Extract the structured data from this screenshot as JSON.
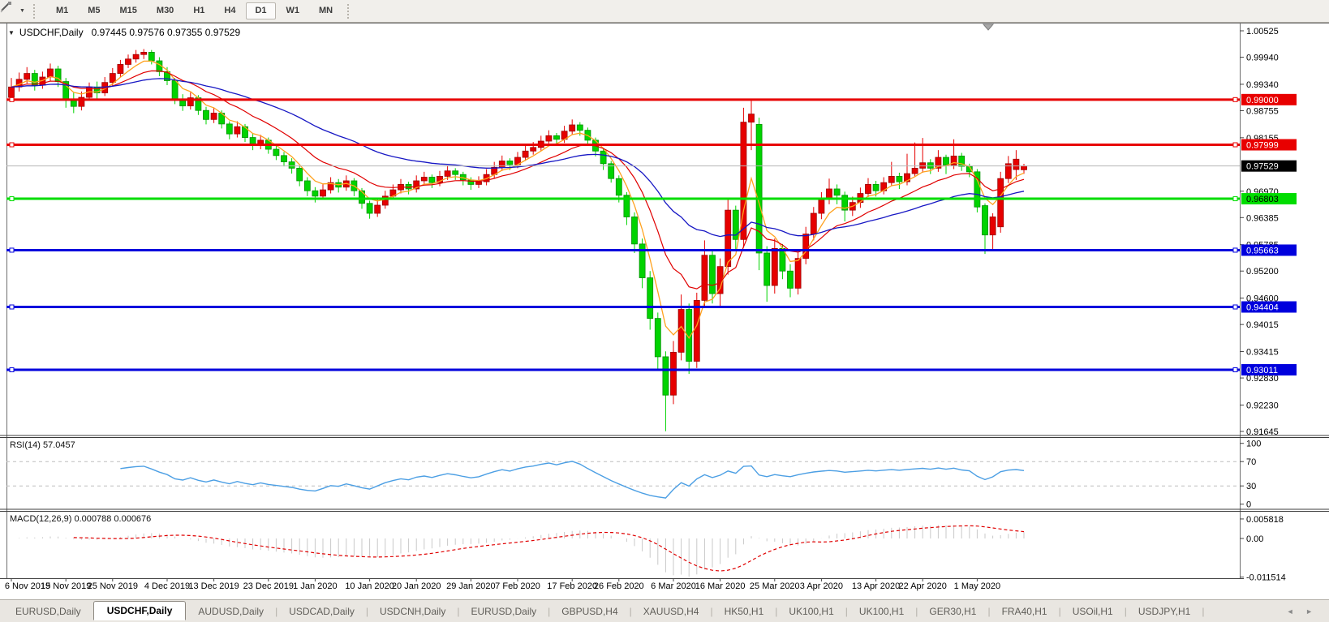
{
  "toolbar": {
    "timeframes": [
      "M1",
      "M5",
      "M15",
      "M30",
      "H1",
      "H4",
      "D1",
      "W1",
      "MN"
    ],
    "active_timeframe": "D1"
  },
  "icons": {
    "dropdown_caret": "▼",
    "tab_left_arrow": "◄",
    "tab_right_arrow": "►"
  },
  "chart": {
    "title_symbol": "USDCHF,Daily",
    "title_ohlc": "0.97445 0.97576 0.97355 0.97529",
    "price_axis_labels": [
      "1.00525",
      "0.99940",
      "0.99340",
      "0.98755",
      "0.98155",
      "0.96970",
      "0.96385",
      "0.95785",
      "0.95200",
      "0.94600",
      "0.94015",
      "0.93415",
      "0.92830",
      "0.92230",
      "0.91645"
    ],
    "hlines": [
      {
        "price": 0.99,
        "label": "0.99000",
        "color": "#e80000",
        "text": "#ffffff"
      },
      {
        "price": 0.97999,
        "label": "0.97999",
        "color": "#e80000",
        "text": "#ffffff"
      },
      {
        "price": 0.96803,
        "label": "0.96803",
        "color": "#00dd00",
        "text": "#000000"
      },
      {
        "price": 0.95663,
        "label": "0.95663",
        "color": "#0000dd",
        "text": "#ffffff"
      },
      {
        "price": 0.94404,
        "label": "0.94404",
        "color": "#0000dd",
        "text": "#ffffff"
      },
      {
        "price": 0.93011,
        "label": "0.93011",
        "color": "#0000dd",
        "text": "#ffffff"
      }
    ],
    "current_price": {
      "value": 0.97529,
      "label": "0.97529",
      "line_color": "#b6b6b6",
      "badge_bg": "#000000",
      "badge_text": "#ffffff"
    },
    "colors": {
      "candle_up": "#e60000",
      "candle_up_stroke": "#9b0000",
      "candle_down": "#00d300",
      "candle_down_stroke": "#009000",
      "ma_fast": "#ffa21f",
      "ma_mid": "#e00000",
      "ma_slow": "#1717c4",
      "rsi_line": "#4c9fe4",
      "macd_hist": "#c9c9c9",
      "macd_signal": "#e00000",
      "axis_text": "#000000",
      "border": "#6e6e6e",
      "level_dash": "#bdbdbd"
    }
  },
  "chart_data": {
    "type": "candlestick",
    "symbol": "USDCHF",
    "timeframe": "Daily",
    "y_range": [
      0.91645,
      1.00525
    ],
    "ma_periods": {
      "fast": 5,
      "mid": 13,
      "slow": 34
    },
    "date_label_indices": [
      0,
      7,
      13,
      20,
      26,
      33,
      39,
      46,
      52,
      59,
      65,
      72,
      78,
      85,
      91,
      98,
      104,
      111,
      117,
      124
    ],
    "date_labels": [
      "6 Nov 2019",
      "15 Nov 2019",
      "25 Nov 2019",
      "4 Dec 2019",
      "13 Dec 2019",
      "23 Dec 2019",
      "1 Jan 2020",
      "10 Jan 2020",
      "20 Jan 2020",
      "29 Jan 2020",
      "7 Feb 2020",
      "17 Feb 2020",
      "26 Feb 2020",
      "6 Mar 2020",
      "16 Mar 2020",
      "25 Mar 2020",
      "3 Apr 2020",
      "13 Apr 2020",
      "22 Apr 2020",
      "1 May 2020"
    ],
    "candles": [
      [
        0.9905,
        0.9948,
        0.9896,
        0.9928
      ],
      [
        0.9928,
        0.996,
        0.9918,
        0.9945
      ],
      [
        0.9945,
        0.9972,
        0.9936,
        0.9958
      ],
      [
        0.9958,
        0.9966,
        0.992,
        0.9932
      ],
      [
        0.9932,
        0.9962,
        0.9924,
        0.995
      ],
      [
        0.995,
        0.998,
        0.9942,
        0.9968
      ],
      [
        0.9968,
        0.9975,
        0.9928,
        0.994
      ],
      [
        0.994,
        0.9948,
        0.9882,
        0.99
      ],
      [
        0.99,
        0.9915,
        0.987,
        0.9885
      ],
      [
        0.9885,
        0.9918,
        0.9876,
        0.9905
      ],
      [
        0.9905,
        0.9938,
        0.9898,
        0.9928
      ],
      [
        0.9928,
        0.994,
        0.9902,
        0.9915
      ],
      [
        0.9915,
        0.995,
        0.9908,
        0.9938
      ],
      [
        0.9938,
        0.997,
        0.993,
        0.9958
      ],
      [
        0.9958,
        0.9988,
        0.995,
        0.9978
      ],
      [
        0.9978,
        1.0,
        0.997,
        0.999
      ],
      [
        0.999,
        1.001,
        0.9982,
        1.0
      ],
      [
        1.0,
        1.0012,
        0.999,
        1.0005
      ],
      [
        1.0005,
        1.001,
        0.9978,
        0.9986
      ],
      [
        0.9986,
        0.9994,
        0.9952,
        0.9962
      ],
      [
        0.9962,
        0.9972,
        0.9932,
        0.9942
      ],
      [
        0.9942,
        0.9948,
        0.989,
        0.99
      ],
      [
        0.99,
        0.9912,
        0.9875,
        0.9886
      ],
      [
        0.9886,
        0.9916,
        0.9878,
        0.9904
      ],
      [
        0.9904,
        0.991,
        0.9866,
        0.9876
      ],
      [
        0.9876,
        0.9884,
        0.9845,
        0.9856
      ],
      [
        0.9856,
        0.9882,
        0.9848,
        0.987
      ],
      [
        0.987,
        0.9876,
        0.9836,
        0.9846
      ],
      [
        0.9846,
        0.9852,
        0.9812,
        0.9824
      ],
      [
        0.9824,
        0.9852,
        0.9816,
        0.984
      ],
      [
        0.984,
        0.9846,
        0.9806,
        0.9816
      ],
      [
        0.9816,
        0.9824,
        0.9788,
        0.9798
      ],
      [
        0.9798,
        0.9822,
        0.979,
        0.981
      ],
      [
        0.981,
        0.9816,
        0.978,
        0.979
      ],
      [
        0.979,
        0.9798,
        0.9766,
        0.9776
      ],
      [
        0.9776,
        0.9784,
        0.9752,
        0.9762
      ],
      [
        0.9762,
        0.977,
        0.9736,
        0.9748
      ],
      [
        0.9748,
        0.9754,
        0.9708,
        0.972
      ],
      [
        0.972,
        0.9728,
        0.9686,
        0.9698
      ],
      [
        0.9698,
        0.9706,
        0.9672,
        0.9686
      ],
      [
        0.9686,
        0.9712,
        0.9678,
        0.97
      ],
      [
        0.97,
        0.9728,
        0.9692,
        0.9716
      ],
      [
        0.9716,
        0.9724,
        0.9694,
        0.9706
      ],
      [
        0.9706,
        0.9732,
        0.9698,
        0.972
      ],
      [
        0.972,
        0.9726,
        0.9686,
        0.9698
      ],
      [
        0.9698,
        0.9704,
        0.9658,
        0.967
      ],
      [
        0.967,
        0.9676,
        0.9636,
        0.9648
      ],
      [
        0.9648,
        0.9678,
        0.964,
        0.9666
      ],
      [
        0.9666,
        0.9698,
        0.9658,
        0.9686
      ],
      [
        0.9686,
        0.9712,
        0.9678,
        0.97
      ],
      [
        0.97,
        0.9724,
        0.9692,
        0.9712
      ],
      [
        0.9712,
        0.9718,
        0.969,
        0.9702
      ],
      [
        0.9702,
        0.9732,
        0.9694,
        0.972
      ],
      [
        0.972,
        0.974,
        0.9712,
        0.9728
      ],
      [
        0.9728,
        0.9734,
        0.9704,
        0.9716
      ],
      [
        0.9716,
        0.9742,
        0.9708,
        0.973
      ],
      [
        0.973,
        0.9754,
        0.9722,
        0.9742
      ],
      [
        0.9742,
        0.9748,
        0.9722,
        0.9734
      ],
      [
        0.9734,
        0.974,
        0.971,
        0.9722
      ],
      [
        0.9722,
        0.9728,
        0.97,
        0.9712
      ],
      [
        0.9712,
        0.973,
        0.9704,
        0.9718
      ],
      [
        0.9718,
        0.9746,
        0.971,
        0.9734
      ],
      [
        0.9734,
        0.9762,
        0.9726,
        0.975
      ],
      [
        0.975,
        0.9776,
        0.9742,
        0.9764
      ],
      [
        0.9764,
        0.977,
        0.9744,
        0.9756
      ],
      [
        0.9756,
        0.9784,
        0.9748,
        0.9772
      ],
      [
        0.9772,
        0.9798,
        0.9764,
        0.9786
      ],
      [
        0.9786,
        0.9806,
        0.9778,
        0.9794
      ],
      [
        0.9794,
        0.982,
        0.9786,
        0.9808
      ],
      [
        0.9808,
        0.9832,
        0.98,
        0.982
      ],
      [
        0.982,
        0.9826,
        0.98,
        0.9812
      ],
      [
        0.9812,
        0.9842,
        0.9804,
        0.983
      ],
      [
        0.983,
        0.9856,
        0.9822,
        0.9844
      ],
      [
        0.9844,
        0.985,
        0.982,
        0.9832
      ],
      [
        0.9832,
        0.9838,
        0.9798,
        0.981
      ],
      [
        0.981,
        0.9816,
        0.9774,
        0.9786
      ],
      [
        0.9786,
        0.9792,
        0.9744,
        0.9758
      ],
      [
        0.9758,
        0.9764,
        0.9716,
        0.9725
      ],
      [
        0.9725,
        0.9732,
        0.9672,
        0.9688
      ],
      [
        0.9688,
        0.9695,
        0.9622,
        0.964
      ],
      [
        0.964,
        0.965,
        0.956,
        0.958
      ],
      [
        0.958,
        0.9592,
        0.9482,
        0.9505
      ],
      [
        0.9505,
        0.952,
        0.939,
        0.9415
      ],
      [
        0.9415,
        0.9428,
        0.9302,
        0.933
      ],
      [
        0.933,
        0.9342,
        0.9165,
        0.9245
      ],
      [
        0.9245,
        0.9365,
        0.9225,
        0.934
      ],
      [
        0.934,
        0.9468,
        0.9322,
        0.9435
      ],
      [
        0.9435,
        0.9448,
        0.9292,
        0.932
      ],
      [
        0.932,
        0.9472,
        0.9305,
        0.9455
      ],
      [
        0.9455,
        0.9588,
        0.9438,
        0.9555
      ],
      [
        0.9555,
        0.9568,
        0.9448,
        0.947
      ],
      [
        0.947,
        0.9548,
        0.944,
        0.953
      ],
      [
        0.953,
        0.9678,
        0.9512,
        0.9655
      ],
      [
        0.9655,
        0.9665,
        0.9565,
        0.959
      ],
      [
        0.959,
        0.9882,
        0.9572,
        0.985
      ],
      [
        0.985,
        0.9901,
        0.9788,
        0.9868
      ],
      [
        0.9845,
        0.986,
        0.9522,
        0.956
      ],
      [
        0.956,
        0.9575,
        0.9452,
        0.9488
      ],
      [
        0.9488,
        0.9592,
        0.947,
        0.957
      ],
      [
        0.957,
        0.958,
        0.9502,
        0.952
      ],
      [
        0.952,
        0.9535,
        0.9462,
        0.9482
      ],
      [
        0.9482,
        0.9562,
        0.9468,
        0.9548
      ],
      [
        0.9548,
        0.9618,
        0.9535,
        0.9602
      ],
      [
        0.9602,
        0.9662,
        0.9588,
        0.9648
      ],
      [
        0.9648,
        0.9695,
        0.9635,
        0.968
      ],
      [
        0.968,
        0.9725,
        0.9668,
        0.9702
      ],
      [
        0.9702,
        0.9712,
        0.9668,
        0.9688
      ],
      [
        0.9688,
        0.9696,
        0.963,
        0.9655
      ],
      [
        0.9655,
        0.9685,
        0.9642,
        0.9672
      ],
      [
        0.9672,
        0.9705,
        0.966,
        0.9692
      ],
      [
        0.9692,
        0.9726,
        0.9684,
        0.9712
      ],
      [
        0.9712,
        0.972,
        0.9685,
        0.9698
      ],
      [
        0.9698,
        0.9728,
        0.969,
        0.9716
      ],
      [
        0.9716,
        0.9762,
        0.9708,
        0.973
      ],
      [
        0.973,
        0.9738,
        0.9702,
        0.9718
      ],
      [
        0.9718,
        0.978,
        0.971,
        0.9736
      ],
      [
        0.9736,
        0.9805,
        0.9728,
        0.9748
      ],
      [
        0.9748,
        0.9815,
        0.9738,
        0.976
      ],
      [
        0.976,
        0.9768,
        0.9735,
        0.9748
      ],
      [
        0.9748,
        0.9788,
        0.974,
        0.9772
      ],
      [
        0.9772,
        0.9778,
        0.9735,
        0.9755
      ],
      [
        0.9755,
        0.9812,
        0.9746,
        0.9775
      ],
      [
        0.9775,
        0.9782,
        0.9742,
        0.9752
      ],
      [
        0.9752,
        0.9758,
        0.9728,
        0.974
      ],
      [
        0.974,
        0.9746,
        0.965,
        0.9662
      ],
      [
        0.9665,
        0.967,
        0.9558,
        0.96
      ],
      [
        0.96,
        0.9648,
        0.9565,
        0.964
      ],
      [
        0.9618,
        0.974,
        0.9605,
        0.9725
      ],
      [
        0.9725,
        0.9775,
        0.9715,
        0.9758
      ],
      [
        0.9745,
        0.9788,
        0.9722,
        0.9768
      ],
      [
        0.97445,
        0.97576,
        0.97355,
        0.97529
      ]
    ],
    "indicators": {
      "rsi": {
        "label": "RSI(14) 57.0457",
        "period": 14,
        "value": 57.0457,
        "levels": [
          70,
          30
        ],
        "range": [
          0,
          100
        ],
        "axis_labels": [
          "100",
          "70",
          "30",
          "0"
        ]
      },
      "macd": {
        "label": "MACD(12,26,9) 0.000788 0.000676",
        "fast": 12,
        "slow": 26,
        "signal": 9,
        "value": 0.000788,
        "signal_value": 0.000676,
        "range": [
          -0.011514,
          0.005818
        ],
        "axis_labels": [
          {
            "value": 0.005818,
            "text": "0.005818"
          },
          {
            "value": 0.0,
            "text": "0.00"
          },
          {
            "value": -0.011514,
            "text": "-0.011514"
          }
        ]
      }
    }
  },
  "tabbar": {
    "tabs": [
      "EURUSD,Daily",
      "USDCHF,Daily",
      "AUDUSD,Daily",
      "USDCAD,Daily",
      "USDCNH,Daily",
      "EURUSD,Daily",
      "GBPUSD,H4",
      "XAUUSD,H4",
      "HK50,H1",
      "UK100,H1",
      "UK100,H1",
      "GER30,H1",
      "FRA40,H1",
      "USOil,H1",
      "USDJPY,H1"
    ],
    "active_index": 1
  }
}
